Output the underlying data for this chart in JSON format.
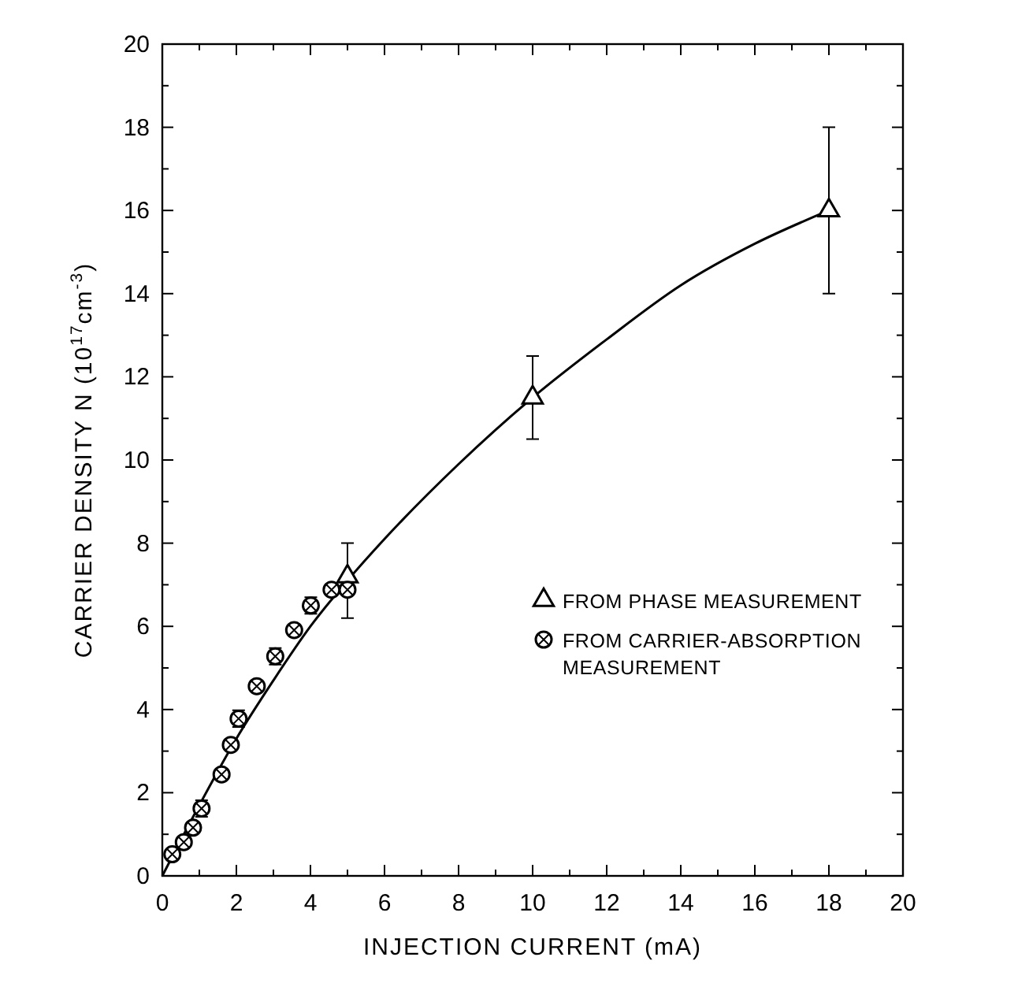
{
  "chart_data": {
    "type": "scatter",
    "xlabel": "INJECTION CURRENT (mA)",
    "ylabel": "CARRIER DENSITY N (10$^{17}$cm$^{-3}$)",
    "xlim": [
      0,
      20
    ],
    "ylim": [
      0,
      20
    ],
    "xticks": [
      0,
      {
        "value": 1,
        "label": null
      },
      2,
      {
        "value": 3,
        "label": null
      },
      4,
      {
        "value": 5,
        "label": null
      },
      6,
      {
        "value": 7,
        "label": null
      },
      8,
      {
        "value": 9,
        "label": null
      },
      10,
      {
        "value": 11,
        "label": null
      },
      12,
      {
        "value": 13,
        "label": null
      },
      14,
      {
        "value": 15,
        "label": null
      },
      16,
      {
        "value": 17,
        "label": null
      },
      18,
      {
        "value": 19,
        "label": null
      },
      20
    ],
    "yticks": [
      0,
      {
        "value": 1,
        "label": null
      },
      2,
      {
        "value": 3,
        "label": null
      },
      4,
      {
        "value": 5,
        "label": null
      },
      6,
      {
        "value": 7,
        "label": null
      },
      8,
      {
        "value": 9,
        "label": null
      },
      10,
      {
        "value": 11,
        "label": null
      },
      12,
      {
        "value": 13,
        "label": null
      },
      14,
      {
        "value": 15,
        "label": null
      },
      16,
      {
        "value": 17,
        "label": null
      },
      18,
      {
        "value": 19,
        "label": null
      },
      20
    ],
    "grid": false,
    "legend": "bottom right",
    "series": [
      {
        "type": "line",
        "color": "#000000",
        "marker": "none",
        "line_style": "solid",
        "x": [
          0,
          1,
          2,
          3,
          4,
          5,
          6,
          8,
          10,
          12,
          14,
          16,
          18
        ],
        "values": [
          0,
          1.7,
          3.3,
          4.7,
          6.0,
          7.1,
          8.1,
          9.9,
          11.5,
          12.9,
          14.2,
          15.2,
          16.0
        ]
      },
      {
        "name": "FROM PHASE MEASUREMENT",
        "color": "#000000",
        "marker": "triangle",
        "x": [
          5,
          10,
          18
        ],
        "values": [
          7.2,
          11.5,
          16.0
        ],
        "errors": [
          [
            6.2,
            8.0
          ],
          [
            10.5,
            12.5
          ],
          [
            14,
            18
          ]
        ]
      },
      {
        "name": "FROM CARRIER-ABSORPTION MEASUREMENT",
        "color": "#000000",
        "marker": "circle",
        "x": [
          0.27,
          0.58,
          0.83,
          1.06,
          1.6,
          1.85,
          2.06,
          2.55,
          3.05,
          3.56,
          4.01,
          4.57,
          5.0
        ],
        "values": [
          0.52,
          0.81,
          1.16,
          1.62,
          2.44,
          3.15,
          3.78,
          4.56,
          5.28,
          5.91,
          6.5,
          6.88,
          6.88
        ],
        "errors": [
          null,
          null,
          null,
          0.2,
          null,
          null,
          0.2,
          null,
          0.2,
          null,
          0.2,
          null,
          null
        ]
      }
    ]
  }
}
